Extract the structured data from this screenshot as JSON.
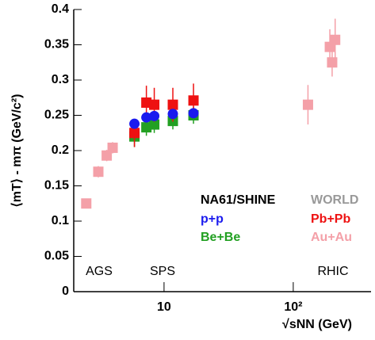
{
  "chart_data": {
    "type": "scatter",
    "x_label": "√sNN (GeV)",
    "y_label": "⟨mT⟩ - mπ (GeV/c²)",
    "xscale": "log",
    "xlim": [
      2,
      400
    ],
    "ylim": [
      0,
      0.4
    ],
    "xticks": [
      10,
      {
        "value": 100,
        "label": "10²"
      }
    ],
    "yticks": [
      0,
      0.05,
      0.1,
      0.15,
      0.2,
      0.25,
      0.3,
      0.35,
      0.4
    ],
    "legend_titles": [
      {
        "text": "NA61/SHINE",
        "color": "#000000"
      },
      {
        "text": "WORLD",
        "color": "#999999"
      }
    ],
    "annotations": [
      "AGS",
      "SPS",
      "RHIC"
    ],
    "series": [
      {
        "name": "Au+Au",
        "color": "#f4a0a8",
        "marker": "square",
        "x": [
          2.5,
          3.1,
          3.6,
          4.0,
          130,
          192,
          200,
          211
        ],
        "values": [
          0.125,
          0.17,
          0.193,
          0.204,
          0.265,
          0.347,
          0.325,
          0.357
        ],
        "errors": [
          0.005,
          0.008,
          0.008,
          0.008,
          0.028,
          0.025,
          0.02,
          0.03
        ]
      },
      {
        "name": "Be+Be",
        "color": "#22a022",
        "marker": "square",
        "x": [
          5.9,
          7.3,
          8.4,
          11.7,
          16.9
        ],
        "values": [
          0.22,
          0.233,
          0.237,
          0.242,
          0.25
        ],
        "errors": [
          0.015,
          0.012,
          0.012,
          0.012,
          0.012
        ]
      },
      {
        "name": "Pb+Pb",
        "color": "#ee1111",
        "marker": "square",
        "x": [
          5.9,
          7.3,
          8.4,
          11.7,
          16.9
        ],
        "values": [
          0.225,
          0.268,
          0.265,
          0.265,
          0.271
        ],
        "errors": [
          0.02,
          0.024,
          0.024,
          0.024,
          0.024
        ]
      },
      {
        "name": "p+p",
        "color": "#1a1aee",
        "marker": "circle",
        "x": [
          5.9,
          7.3,
          8.4,
          11.7,
          16.9
        ],
        "values": [
          0.238,
          0.247,
          0.249,
          0.252,
          0.253
        ],
        "errors": [
          0.006,
          0.006,
          0.006,
          0.006,
          0.006
        ]
      }
    ]
  }
}
